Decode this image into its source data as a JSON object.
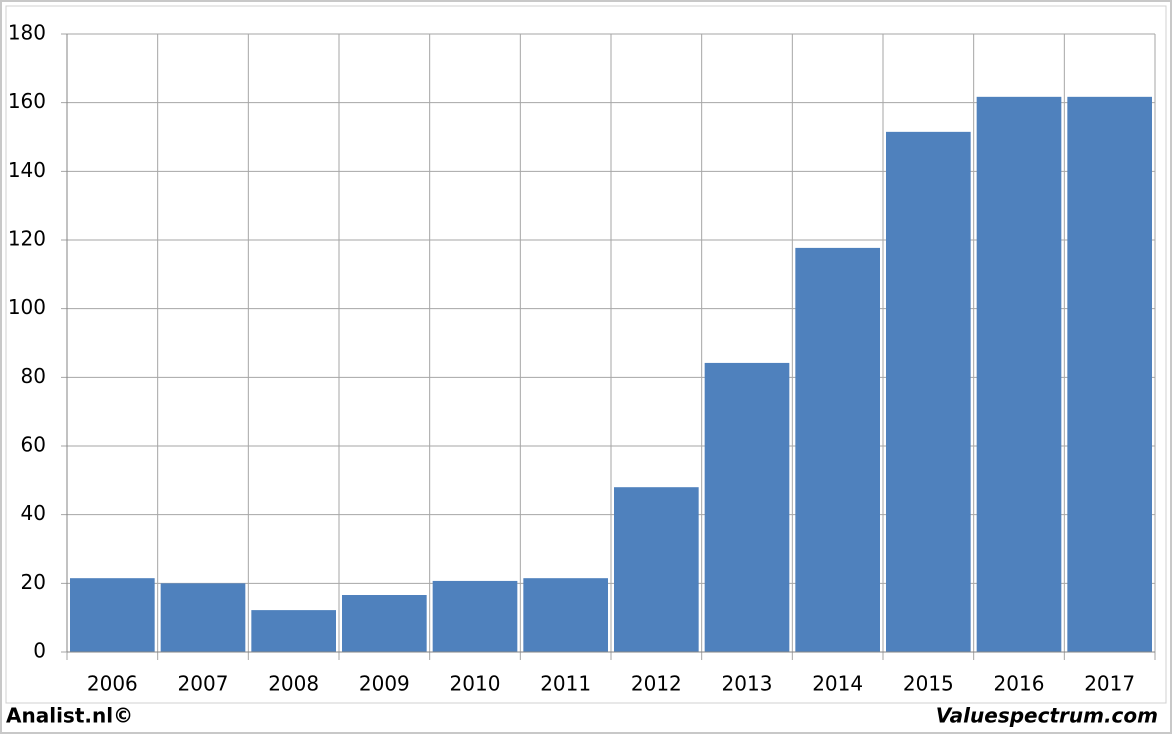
{
  "chart_data": {
    "type": "bar",
    "categories": [
      "2006",
      "2007",
      "2008",
      "2009",
      "2010",
      "2011",
      "2012",
      "2013",
      "2014",
      "2015",
      "2016",
      "2017"
    ],
    "values": [
      21.5,
      20,
      12.2,
      16.6,
      20.7,
      21.5,
      48,
      84.2,
      117.7,
      151.5,
      161.7,
      161.7
    ],
    "color": "#4f81bd",
    "ylim": [
      0,
      180
    ],
    "yticks": [
      0,
      20,
      40,
      60,
      80,
      100,
      120,
      140,
      160,
      180
    ],
    "grid": true,
    "source_left": "Analist.nl©",
    "source_right": "Valuespectrum.com"
  }
}
